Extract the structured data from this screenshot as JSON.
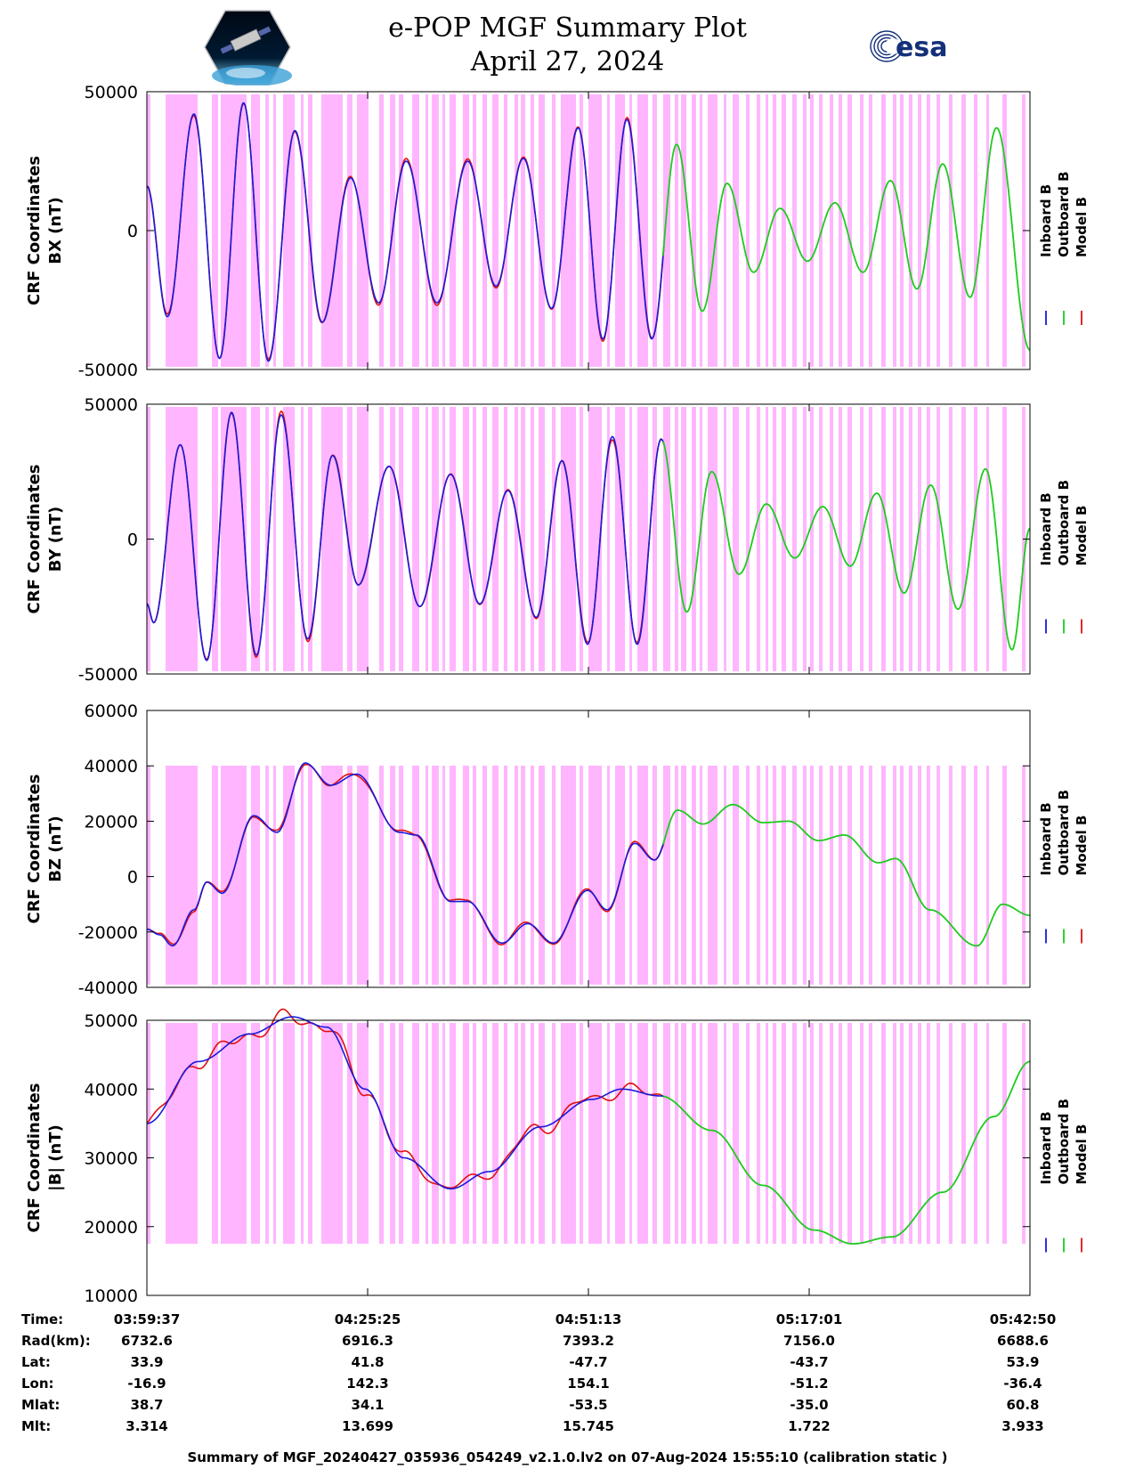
{
  "title": "e-POP MGF Summary Plot",
  "date": "April 27, 2024",
  "esa_logo_text": "esa",
  "colors": {
    "inboard": "#1a1adb",
    "outboard": "#1ecb1e",
    "model": "#e01010",
    "shade": "#ffb6ff"
  },
  "legend": [
    "Inboard B",
    "Outboard B",
    "Model B"
  ],
  "time_ticks": [
    "03:59:37",
    "04:25:25",
    "04:51:13",
    "05:17:01",
    "05:42:50"
  ],
  "footer": {
    "rows": [
      {
        "label": "Time:",
        "values": [
          "03:59:37",
          "04:25:25",
          "04:51:13",
          "05:17:01",
          "05:42:50"
        ]
      },
      {
        "label": "Rad(km):",
        "values": [
          "6732.6",
          "6916.3",
          "7393.2",
          "7156.0",
          "6688.6"
        ]
      },
      {
        "label": "Lat:",
        "values": [
          "33.9",
          "41.8",
          "-47.7",
          "-43.7",
          "53.9"
        ]
      },
      {
        "label": "Lon:",
        "values": [
          "-16.9",
          "142.3",
          "154.1",
          "-51.2",
          "-36.4"
        ]
      },
      {
        "label": "Mlat:",
        "values": [
          "38.7",
          "34.1",
          "-53.5",
          "-35.0",
          "60.8"
        ]
      },
      {
        "label": "Mlt:",
        "values": [
          "3.314",
          "13.699",
          "15.745",
          "1.722",
          "3.933"
        ]
      }
    ]
  },
  "summary": "Summary of MGF_20240427_035936_054249_v2.1.0.lv2 on 07-Aug-2024 15:55:10 (calibration static )",
  "chart_data": [
    {
      "type": "line",
      "name": "BX",
      "ylabel": [
        "CRF Coordinates",
        "BX (nT)"
      ],
      "ylim": [
        -50000,
        50000
      ],
      "yticks": [
        "50000",
        "0",
        "-50000"
      ],
      "x_minutes_range": [
        0,
        103.2
      ],
      "extrema": [
        {
          "t": 0,
          "v": 16000
        },
        {
          "t": 2.4,
          "v": -31000
        },
        {
          "t": 5.5,
          "v": 42000
        },
        {
          "t": 8.5,
          "v": -46000
        },
        {
          "t": 11.3,
          "v": 46000
        },
        {
          "t": 14.2,
          "v": -47000
        },
        {
          "t": 17.3,
          "v": 36000
        },
        {
          "t": 20.5,
          "v": -33000
        },
        {
          "t": 23.8,
          "v": 19000
        },
        {
          "t": 27.1,
          "v": -26000
        },
        {
          "t": 30.3,
          "v": 25000
        },
        {
          "t": 33.9,
          "v": -26000
        },
        {
          "t": 37.5,
          "v": 25000
        },
        {
          "t": 40.8,
          "v": -20000
        },
        {
          "t": 44.0,
          "v": 26000
        },
        {
          "t": 47.3,
          "v": -28000
        },
        {
          "t": 50.4,
          "v": 37000
        },
        {
          "t": 53.3,
          "v": -39000
        },
        {
          "t": 56.1,
          "v": 40000
        },
        {
          "t": 59.0,
          "v": -39000
        },
        {
          "t": 61.9,
          "v": 31000
        },
        {
          "t": 64.9,
          "v": -29000
        },
        {
          "t": 67.8,
          "v": 17000
        },
        {
          "t": 70.9,
          "v": -15000
        },
        {
          "t": 74.0,
          "v": 8000
        },
        {
          "t": 77.2,
          "v": -11000
        },
        {
          "t": 80.4,
          "v": 10000
        },
        {
          "t": 83.7,
          "v": -15000
        },
        {
          "t": 86.9,
          "v": 18000
        },
        {
          "t": 90.0,
          "v": -21000
        },
        {
          "t": 93.0,
          "v": 24000
        },
        {
          "t": 96.2,
          "v": -24000
        },
        {
          "t": 99.3,
          "v": 37000
        },
        {
          "t": 103.2,
          "v": -43000
        }
      ]
    },
    {
      "type": "line",
      "name": "BY",
      "ylabel": [
        "CRF Coordinates",
        "BY (nT)"
      ],
      "ylim": [
        -50000,
        50000
      ],
      "yticks": [
        "50000",
        "0",
        "-50000"
      ],
      "x_minutes_range": [
        0,
        103.2
      ],
      "extrema": [
        {
          "t": 0,
          "v": -24000
        },
        {
          "t": 0.8,
          "v": -31000
        },
        {
          "t": 3.9,
          "v": 35000
        },
        {
          "t": 7.0,
          "v": -45000
        },
        {
          "t": 9.9,
          "v": 47000
        },
        {
          "t": 12.8,
          "v": -43000
        },
        {
          "t": 15.7,
          "v": 46000
        },
        {
          "t": 18.8,
          "v": -37000
        },
        {
          "t": 21.7,
          "v": 31000
        },
        {
          "t": 24.7,
          "v": -17000
        },
        {
          "t": 28.3,
          "v": 27000
        },
        {
          "t": 31.9,
          "v": -25000
        },
        {
          "t": 35.5,
          "v": 24000
        },
        {
          "t": 38.9,
          "v": -24000
        },
        {
          "t": 42.2,
          "v": 18000
        },
        {
          "t": 45.5,
          "v": -29000
        },
        {
          "t": 48.5,
          "v": 29000
        },
        {
          "t": 51.5,
          "v": -39000
        },
        {
          "t": 54.4,
          "v": 38000
        },
        {
          "t": 57.3,
          "v": -39000
        },
        {
          "t": 60.1,
          "v": 37000
        },
        {
          "t": 63.1,
          "v": -27000
        },
        {
          "t": 66.0,
          "v": 25000
        },
        {
          "t": 69.2,
          "v": -13000
        },
        {
          "t": 72.4,
          "v": 13000
        },
        {
          "t": 75.7,
          "v": -7000
        },
        {
          "t": 79.0,
          "v": 12000
        },
        {
          "t": 82.2,
          "v": -10000
        },
        {
          "t": 85.3,
          "v": 17000
        },
        {
          "t": 88.5,
          "v": -20000
        },
        {
          "t": 91.6,
          "v": 20000
        },
        {
          "t": 94.8,
          "v": -26000
        },
        {
          "t": 98.0,
          "v": 26000
        },
        {
          "t": 101.1,
          "v": -41000
        },
        {
          "t": 103.2,
          "v": 4000
        }
      ]
    },
    {
      "type": "line",
      "name": "BZ",
      "ylabel": [
        "CRF Coordinates",
        "BZ (nT)"
      ],
      "ylim": [
        -40000,
        60000
      ],
      "yticks": [
        "60000",
        "40000",
        "20000",
        "0",
        "-20000",
        "-40000"
      ],
      "x_minutes_range": [
        0,
        103.2
      ],
      "extrema": [
        {
          "t": 0,
          "v": -19000
        },
        {
          "t": 1.5,
          "v": -21000
        },
        {
          "t": 3.0,
          "v": -25000
        },
        {
          "t": 5.5,
          "v": -12000
        },
        {
          "t": 7.0,
          "v": -2000
        },
        {
          "t": 8.8,
          "v": -6000
        },
        {
          "t": 12.5,
          "v": 22000
        },
        {
          "t": 15.2,
          "v": 16000
        },
        {
          "t": 18.5,
          "v": 41000
        },
        {
          "t": 21.5,
          "v": 33000
        },
        {
          "t": 24.5,
          "v": 37000
        },
        {
          "t": 29.5,
          "v": 16000
        },
        {
          "t": 31.5,
          "v": 15000
        },
        {
          "t": 35.5,
          "v": -9000
        },
        {
          "t": 37.5,
          "v": -9000
        },
        {
          "t": 41.5,
          "v": -24000
        },
        {
          "t": 44.5,
          "v": -17000
        },
        {
          "t": 47.5,
          "v": -24000
        },
        {
          "t": 51.5,
          "v": -5000
        },
        {
          "t": 53.8,
          "v": -12000
        },
        {
          "t": 57.0,
          "v": 12000
        },
        {
          "t": 59.3,
          "v": 6000
        },
        {
          "t": 62.0,
          "v": 24000
        },
        {
          "t": 65.0,
          "v": 19000
        },
        {
          "t": 68.5,
          "v": 26000
        },
        {
          "t": 72.0,
          "v": 19500
        },
        {
          "t": 75.0,
          "v": 20000
        },
        {
          "t": 78.5,
          "v": 13000
        },
        {
          "t": 81.5,
          "v": 15000
        },
        {
          "t": 85.5,
          "v": 5000
        },
        {
          "t": 87.5,
          "v": 6500
        },
        {
          "t": 91.5,
          "v": -12000
        },
        {
          "t": 97.0,
          "v": -25000
        },
        {
          "t": 100.0,
          "v": -10000
        },
        {
          "t": 103.2,
          "v": -14000
        }
      ]
    },
    {
      "type": "line",
      "name": "|B|",
      "ylabel": [
        "CRF Coordinates",
        "|B| (nT)"
      ],
      "ylim": [
        10000,
        50000
      ],
      "yticks": [
        "50000",
        "40000",
        "30000",
        "20000",
        "10000"
      ],
      "x_minutes_range": [
        0,
        103.2
      ],
      "extrema": [
        {
          "t": 0,
          "v": 35000
        },
        {
          "t": 6.0,
          "v": 44000
        },
        {
          "t": 12.0,
          "v": 48000
        },
        {
          "t": 17.0,
          "v": 50500
        },
        {
          "t": 21.0,
          "v": 49000
        },
        {
          "t": 25.5,
          "v": 40000
        },
        {
          "t": 30.0,
          "v": 30000
        },
        {
          "t": 35.5,
          "v": 25500
        },
        {
          "t": 40.0,
          "v": 28000
        },
        {
          "t": 46.0,
          "v": 34500
        },
        {
          "t": 52.0,
          "v": 38500
        },
        {
          "t": 55.5,
          "v": 40000
        },
        {
          "t": 60.0,
          "v": 39000
        },
        {
          "t": 66.0,
          "v": 34000
        },
        {
          "t": 72.0,
          "v": 26000
        },
        {
          "t": 78.0,
          "v": 19500
        },
        {
          "t": 82.5,
          "v": 17500
        },
        {
          "t": 87.0,
          "v": 18500
        },
        {
          "t": 93.0,
          "v": 25000
        },
        {
          "t": 99.0,
          "v": 36000
        },
        {
          "t": 103.2,
          "v": 44000
        }
      ]
    }
  ],
  "color_switch_minute": 60.5
}
